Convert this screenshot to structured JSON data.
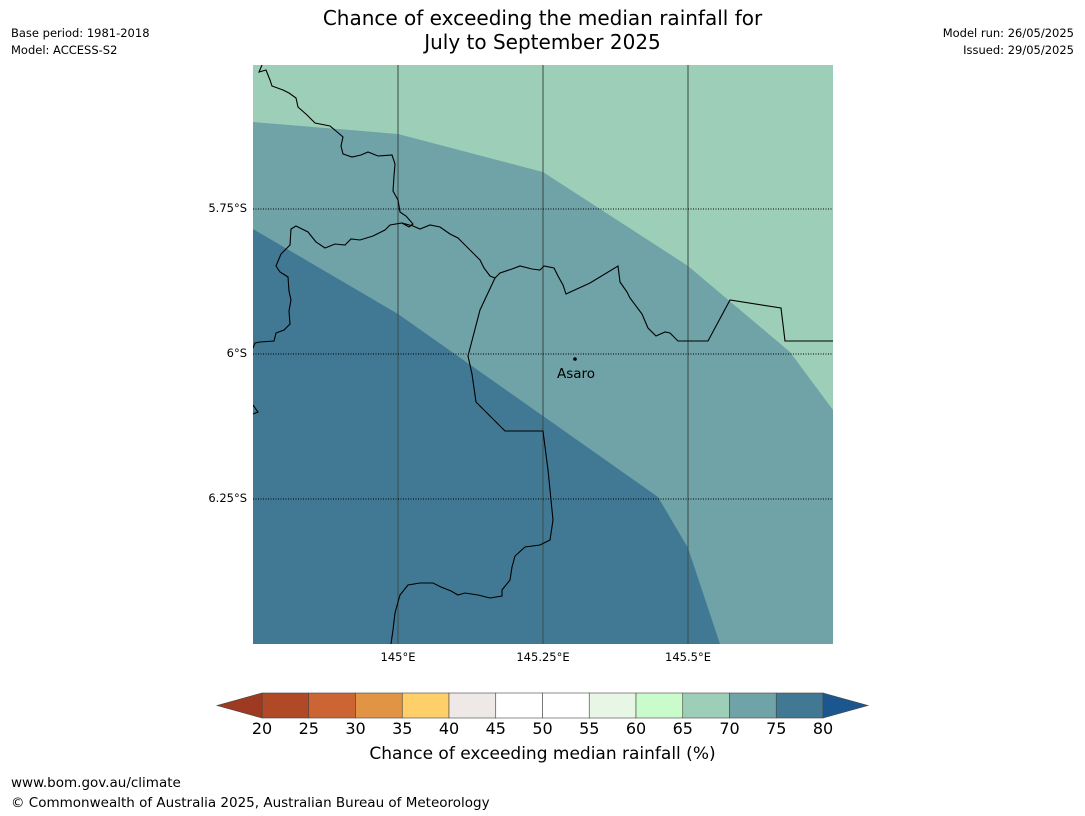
{
  "title": {
    "line1": "Chance of exceeding the median rainfall for",
    "line2": "July to September 2025"
  },
  "meta_left": {
    "base_period": "Base period: 1981-2018",
    "model": "Model: ACCESS-S2"
  },
  "meta_right": {
    "model_run": "Model run: 26/05/2025",
    "issued": "Issued: 29/05/2025"
  },
  "map": {
    "lat_labels": [
      "5.75°S",
      "6°S",
      "6.25°S"
    ],
    "lon_labels": [
      "145°E",
      "145.25°E",
      "145.5°E"
    ],
    "place": "Asaro",
    "band_colors": {
      "65-70": "#9dcfb8",
      "70-75": "#6fa3a7",
      "75-80": "#417995"
    }
  },
  "colorbar": {
    "ticks": [
      "20",
      "25",
      "30",
      "35",
      "40",
      "45",
      "50",
      "55",
      "60",
      "65",
      "70",
      "75",
      "80"
    ],
    "colors": [
      "#b04a26",
      "#cc6533",
      "#e29445",
      "#ffcf69",
      "#eee9e6",
      "#ffffff",
      "#ffffff",
      "#e8f6e6",
      "#c9fbcb",
      "#9dcfb8",
      "#6fa3a7",
      "#417995"
    ],
    "under_color": "#9e3a22",
    "over_color": "#1c568f",
    "label": "Chance of exceeding median rainfall (%)"
  },
  "footer": {
    "url": "www.bom.gov.au/climate",
    "copyright": "© Commonwealth of Australia 2025, Australian Bureau of Meteorology"
  }
}
